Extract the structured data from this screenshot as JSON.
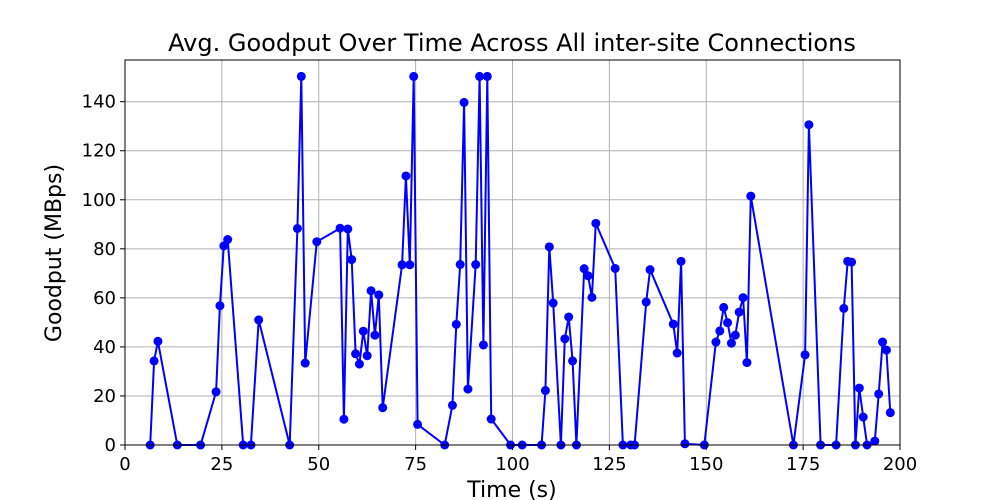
{
  "chart_data": {
    "type": "line",
    "title": "Avg. Goodput Over Time Across All inter-site Connections",
    "xlabel": "Time (s)",
    "ylabel": "Goodput (MBps)",
    "xlim": [
      0,
      200
    ],
    "ylim": [
      0,
      157
    ],
    "xticks": [
      0,
      25,
      50,
      75,
      100,
      125,
      150,
      175,
      200
    ],
    "yticks": [
      0,
      20,
      40,
      60,
      80,
      100,
      120,
      140
    ],
    "grid": true,
    "legend": "none",
    "series": [
      {
        "color": "#0000ff",
        "marker": "circle",
        "x": [
          6.5,
          7.5,
          8.5,
          13.5,
          19.5,
          23.5,
          24.5,
          25.5,
          26.5,
          30.5,
          32.5,
          34.5,
          42.5,
          44.5,
          45.5,
          46.5,
          49.5,
          55.5,
          56.5,
          57.5,
          58.5,
          59.5,
          60.5,
          61.5,
          62.5,
          63.5,
          64.5,
          65.5,
          66.5,
          71.5,
          72.5,
          73.5,
          74.5,
          75.5,
          82.5,
          84.5,
          85.5,
          86.5,
          87.5,
          88.5,
          90.5,
          91.5,
          92.5,
          93.5,
          94.5,
          99.5,
          102.5,
          107.5,
          108.5,
          109.5,
          110.5,
          112.5,
          113.5,
          114.5,
          115.5,
          116.5,
          118.5,
          119.5,
          120.5,
          121.5,
          126.5,
          128.5,
          130.5,
          131.5,
          134.5,
          135.5,
          141.5,
          142.5,
          143.5,
          144.5,
          149.5,
          152.5,
          153.5,
          154.5,
          155.5,
          156.5,
          157.5,
          158.5,
          159.5,
          160.5,
          161.5,
          172.5,
          175.5,
          176.5,
          179.5,
          183.5,
          185.5,
          186.5,
          187.5,
          188.5,
          189.5,
          190.5,
          191.5,
          193.5,
          194.5,
          195.5,
          196.5,
          197.5
        ],
        "y": [
          0,
          34.3,
          42.3,
          0,
          0,
          21.7,
          56.8,
          81.2,
          83.8,
          0,
          0,
          51,
          0,
          88.3,
          150.3,
          33.4,
          82.9,
          88.4,
          10.5,
          88.1,
          75.6,
          37.2,
          33,
          46.4,
          36.4,
          62.9,
          44.8,
          61.2,
          15.2,
          73.5,
          109.7,
          73.5,
          150.3,
          8.4,
          0,
          16.2,
          49.2,
          73.6,
          139.7,
          22.8,
          73.6,
          150.3,
          40.8,
          150.3,
          10.6,
          0,
          0,
          0,
          22.2,
          80.8,
          57.9,
          0,
          43.3,
          52.2,
          34.3,
          0,
          71.9,
          69,
          60.2,
          90.4,
          72,
          0,
          0,
          0,
          58.3,
          71.5,
          49.3,
          37.5,
          74.9,
          0.5,
          0,
          42,
          46.5,
          56.1,
          49.9,
          41.5,
          44.8,
          54.2,
          60.1,
          33.6,
          101.5,
          0,
          36.8,
          130.6,
          0,
          0,
          55.7,
          74.9,
          74.6,
          0,
          23.2,
          11.4,
          0,
          1.6,
          20.8,
          42,
          38.7,
          13.2
        ]
      }
    ]
  }
}
